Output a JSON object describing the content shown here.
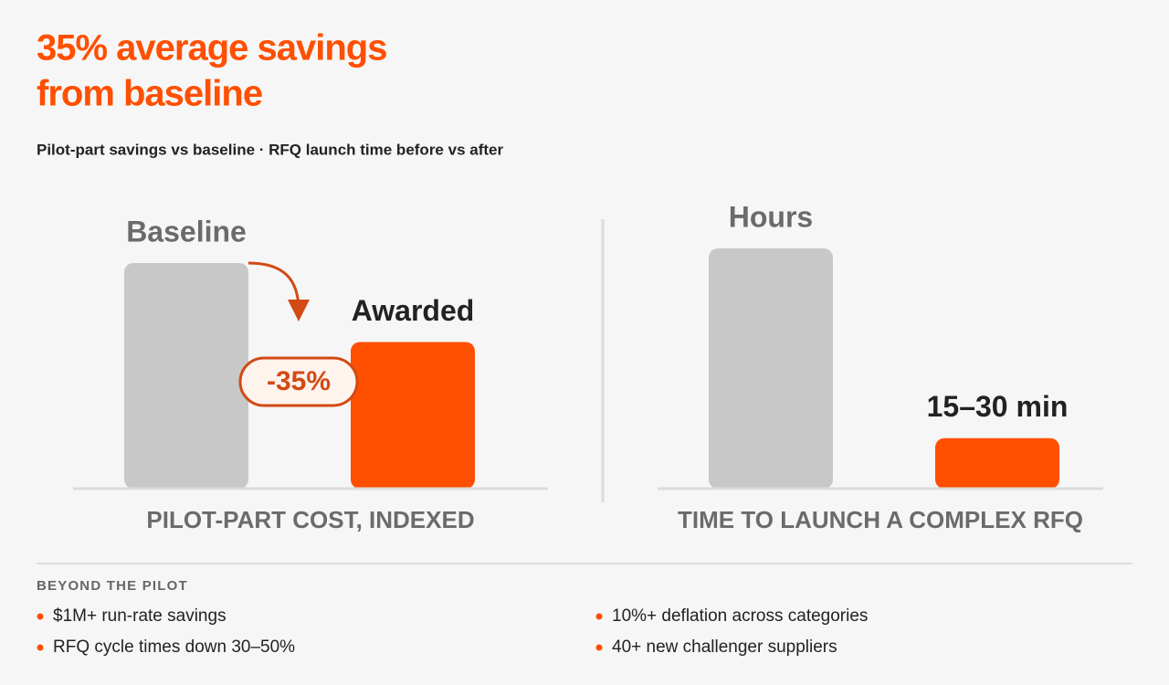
{
  "header": {
    "title": [
      "35% average savings",
      "from baseline"
    ],
    "subtitle": "Pilot-part savings vs baseline · RFQ launch time before vs after"
  },
  "chart_data": [
    {
      "type": "bar",
      "categories": [
        "Baseline",
        "Awarded"
      ],
      "values": [
        100,
        65
      ],
      "colors": [
        "#c8c8c8",
        "#ff4f00"
      ],
      "ylim": [
        0,
        100
      ],
      "x_label": "PILOT-PART COST, INDEXED",
      "annotation": "-35%"
    },
    {
      "type": "bar",
      "categories": [
        "Hours",
        "15–30 min"
      ],
      "values": [
        100,
        21
      ],
      "colors": [
        "#c8c8c8",
        "#ff4f00"
      ],
      "ylim": [
        0,
        100
      ],
      "x_label": "TIME TO LAUNCH A COMPLEX RFQ"
    }
  ],
  "footer": {
    "heading": "BEYOND THE PILOT",
    "items": [
      "$1M+ run-rate savings",
      "RFQ cycle times down 30–50%",
      "10%+ deflation across categories",
      "40+ new challenger suppliers"
    ]
  }
}
